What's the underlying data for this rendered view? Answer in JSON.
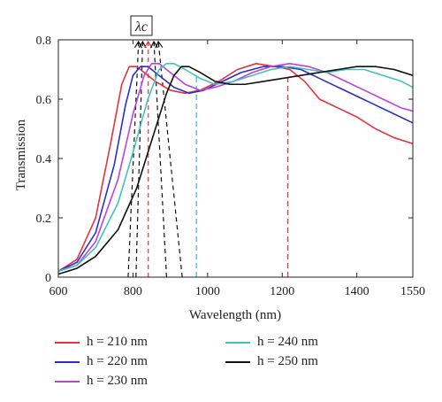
{
  "chart_data": {
    "type": "line",
    "xlabel": "Wavelength (nm)",
    "ylabel": "Transmission",
    "xlim": [
      600,
      1550
    ],
    "ylim": [
      0,
      0.8
    ],
    "xticks": [
      600,
      800,
      1000,
      1200,
      1400,
      1550
    ],
    "yticks": [
      0,
      0.2,
      0.4,
      0.6,
      0.8
    ],
    "annotation": "λc",
    "legend_placement": "bottom",
    "series": [
      {
        "name": "h = 210 nm",
        "color": "#e8313a",
        "points": [
          [
            600,
            0.02
          ],
          [
            650,
            0.06
          ],
          [
            700,
            0.2
          ],
          [
            740,
            0.45
          ],
          [
            770,
            0.65
          ],
          [
            790,
            0.71
          ],
          [
            810,
            0.71
          ],
          [
            830,
            0.69
          ],
          [
            860,
            0.66
          ],
          [
            900,
            0.63
          ],
          [
            940,
            0.62
          ],
          [
            980,
            0.63
          ],
          [
            1030,
            0.66
          ],
          [
            1080,
            0.7
          ],
          [
            1130,
            0.72
          ],
          [
            1180,
            0.71
          ],
          [
            1220,
            0.7
          ],
          [
            1260,
            0.66
          ],
          [
            1300,
            0.6
          ],
          [
            1350,
            0.57
          ],
          [
            1400,
            0.54
          ],
          [
            1450,
            0.5
          ],
          [
            1500,
            0.47
          ],
          [
            1550,
            0.45
          ]
        ],
        "cutoff": 1215
      },
      {
        "name": "h = 220 nm",
        "color": "#2b2fc9",
        "points": [
          [
            600,
            0.02
          ],
          [
            650,
            0.05
          ],
          [
            700,
            0.15
          ],
          [
            750,
            0.38
          ],
          [
            780,
            0.58
          ],
          [
            800,
            0.68
          ],
          [
            820,
            0.71
          ],
          [
            840,
            0.71
          ],
          [
            870,
            0.68
          ],
          [
            910,
            0.64
          ],
          [
            950,
            0.62
          ],
          [
            990,
            0.63
          ],
          [
            1040,
            0.66
          ],
          [
            1090,
            0.69
          ],
          [
            1150,
            0.71
          ],
          [
            1200,
            0.71
          ],
          [
            1250,
            0.7
          ],
          [
            1300,
            0.67
          ],
          [
            1350,
            0.64
          ],
          [
            1400,
            0.61
          ],
          [
            1450,
            0.58
          ],
          [
            1500,
            0.55
          ],
          [
            1550,
            0.52
          ]
        ],
        "cutoff": null
      },
      {
        "name": "h = 230 nm",
        "color": "#c040d8",
        "points": [
          [
            600,
            0.02
          ],
          [
            650,
            0.04
          ],
          [
            700,
            0.12
          ],
          [
            760,
            0.33
          ],
          [
            800,
            0.55
          ],
          [
            830,
            0.68
          ],
          [
            850,
            0.72
          ],
          [
            870,
            0.72
          ],
          [
            900,
            0.69
          ],
          [
            940,
            0.65
          ],
          [
            980,
            0.63
          ],
          [
            1020,
            0.64
          ],
          [
            1070,
            0.66
          ],
          [
            1120,
            0.69
          ],
          [
            1170,
            0.71
          ],
          [
            1220,
            0.72
          ],
          [
            1270,
            0.71
          ],
          [
            1320,
            0.69
          ],
          [
            1370,
            0.66
          ],
          [
            1420,
            0.63
          ],
          [
            1470,
            0.6
          ],
          [
            1520,
            0.57
          ],
          [
            1550,
            0.56
          ]
        ],
        "cutoff": null
      },
      {
        "name": "h = 240 nm",
        "color": "#3fc3c0",
        "points": [
          [
            600,
            0.02
          ],
          [
            650,
            0.04
          ],
          [
            700,
            0.1
          ],
          [
            760,
            0.25
          ],
          [
            800,
            0.42
          ],
          [
            840,
            0.6
          ],
          [
            870,
            0.7
          ],
          [
            890,
            0.72
          ],
          [
            910,
            0.72
          ],
          [
            940,
            0.7
          ],
          [
            980,
            0.67
          ],
          [
            1020,
            0.65
          ],
          [
            1070,
            0.66
          ],
          [
            1120,
            0.68
          ],
          [
            1170,
            0.7
          ],
          [
            1220,
            0.71
          ],
          [
            1270,
            0.7
          ],
          [
            1320,
            0.69
          ],
          [
            1370,
            0.7
          ],
          [
            1420,
            0.7
          ],
          [
            1470,
            0.68
          ],
          [
            1520,
            0.66
          ],
          [
            1550,
            0.64
          ]
        ],
        "cutoff": 970
      },
      {
        "name": "h = 250 nm",
        "color": "#111111",
        "points": [
          [
            600,
            0.01
          ],
          [
            650,
            0.03
          ],
          [
            700,
            0.07
          ],
          [
            760,
            0.16
          ],
          [
            810,
            0.3
          ],
          [
            860,
            0.5
          ],
          [
            890,
            0.62
          ],
          [
            910,
            0.68
          ],
          [
            930,
            0.71
          ],
          [
            950,
            0.71
          ],
          [
            980,
            0.69
          ],
          [
            1020,
            0.66
          ],
          [
            1060,
            0.65
          ],
          [
            1100,
            0.65
          ],
          [
            1150,
            0.66
          ],
          [
            1200,
            0.67
          ],
          [
            1250,
            0.68
          ],
          [
            1300,
            0.69
          ],
          [
            1350,
            0.7
          ],
          [
            1400,
            0.71
          ],
          [
            1450,
            0.71
          ],
          [
            1500,
            0.7
          ],
          [
            1550,
            0.68
          ]
        ],
        "cutoff": null
      }
    ],
    "peak_arrows": [
      {
        "x_base": 787,
        "x_tip": 815,
        "y_base": 0.0,
        "y_tip": 0.8
      },
      {
        "x_base": 808,
        "x_tip": 826,
        "y_base": 0.0,
        "y_tip": 0.8
      },
      {
        "x_base": 841,
        "x_tip": 841,
        "y_base": 0.0,
        "y_tip": 0.8,
        "color": "#e8313a"
      },
      {
        "x_base": 890,
        "x_tip": 856,
        "y_base": 0.0,
        "y_tip": 0.8
      },
      {
        "x_base": 932,
        "x_tip": 868,
        "y_base": 0.0,
        "y_tip": 0.8
      }
    ]
  }
}
